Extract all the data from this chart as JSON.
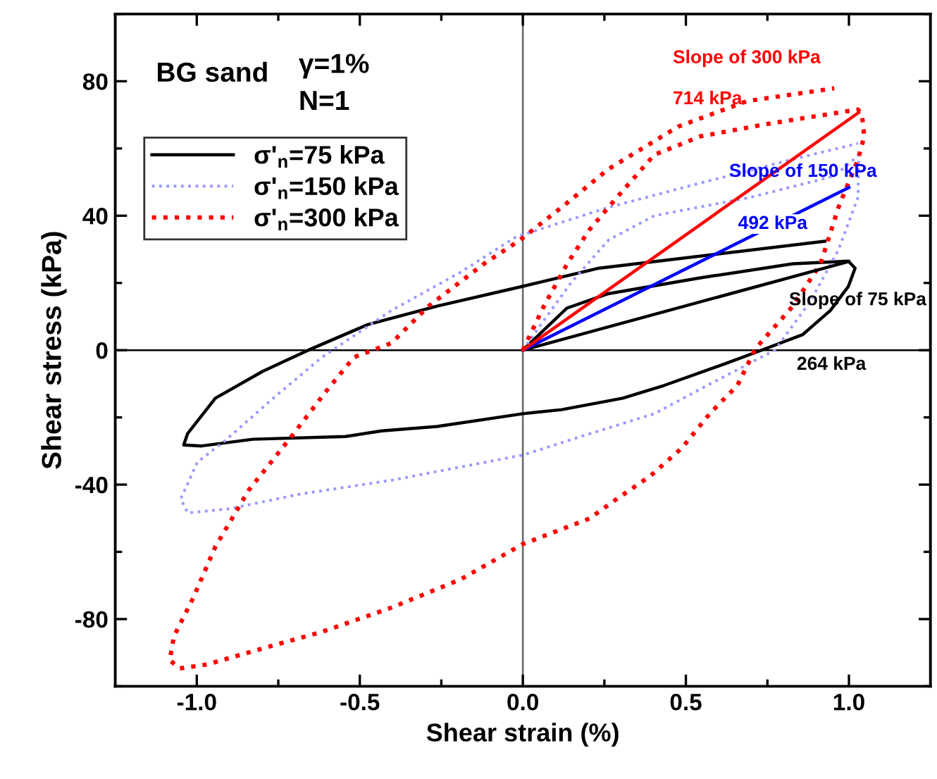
{
  "chart_data": {
    "type": "line",
    "xlabel": "Shear strain (%)",
    "ylabel": "Shear stress (kPa)",
    "xlim": [
      -1.25,
      1.25
    ],
    "ylim": [
      -100,
      100
    ],
    "xticks": [
      {
        "value": -1.0,
        "label": "-1.0"
      },
      {
        "value": -0.75,
        "label": null
      },
      {
        "value": -0.5,
        "label": "-0.5"
      },
      {
        "value": -0.25,
        "label": null
      },
      {
        "value": 0,
        "label": "0.0"
      },
      {
        "value": 0.25,
        "label": null
      },
      {
        "value": 0.5,
        "label": "0.5"
      },
      {
        "value": 0.75,
        "label": null
      },
      {
        "value": 1.0,
        "label": "1.0"
      }
    ],
    "yticks": [
      {
        "value": -100,
        "label": null
      },
      -80,
      {
        "value": -60,
        "label": null
      },
      -40,
      {
        "value": -20,
        "label": null
      },
      0,
      {
        "value": 20,
        "label": null
      },
      40,
      {
        "value": 60,
        "label": null
      },
      80,
      {
        "value": 100,
        "label": null
      }
    ],
    "grid": false,
    "legend": "top left",
    "series": [
      {
        "name": "σ'$_{n}$=75 kPa",
        "color": "#000000",
        "line_style": "solid",
        "x": [
          0,
          0.135,
          0.262,
          0.544,
          0.828,
          0.998,
          1.019,
          0.998,
          0.943,
          0.858,
          0.743,
          0.616,
          0.433,
          0.306,
          0.119,
          0,
          -0.263,
          -0.433,
          -0.544,
          -0.828,
          -0.985,
          -1.04,
          -1.028,
          -0.943,
          -0.798,
          -0.658,
          -0.476,
          -0.263,
          0,
          0.234,
          0.926
        ],
        "values": [
          0,
          12.5,
          16.8,
          21.5,
          25.7,
          26.5,
          24.4,
          18.9,
          11.8,
          4.6,
          0.4,
          -4.2,
          -10.5,
          -14.3,
          -17.7,
          -18.9,
          -22.7,
          -24,
          -25.7,
          -26.5,
          -28.5,
          -28.2,
          -24.8,
          -14.3,
          -6.3,
          0,
          7.6,
          13.1,
          19,
          24.4,
          32.4
        ]
      },
      {
        "name": "σ'$_{n}$=150 kPa",
        "color": "#9999ff",
        "line_style": "dotted",
        "x": [
          0,
          0.064,
          0.149,
          0.263,
          0.403,
          0.7,
          0.955,
          1.03,
          1.028,
          0.968,
          0.883,
          0.773,
          0.573,
          0.403,
          0.191,
          0,
          -0.403,
          -0.688,
          -0.9,
          -1.028,
          -1.049,
          -0.998,
          -0.913,
          -0.756,
          -0.616,
          -0.403,
          -0.191,
          -0.021,
          0.263,
          0.544,
          0.828,
          1.028
        ],
        "values": [
          0,
          8.8,
          20.2,
          32.8,
          40,
          45.5,
          51.8,
          58,
          45.5,
          29.9,
          14.7,
          0,
          -10.1,
          -18.9,
          -25.3,
          -31.2,
          -38.7,
          -42.9,
          -47.2,
          -48.4,
          -44.2,
          -33.3,
          -26.9,
          -13.5,
          -2.1,
          11.8,
          23.2,
          33.7,
          42.5,
          49.7,
          56.8,
          61.5
        ]
      },
      {
        "name": "σ'$_{n}$=300 kPa",
        "color": "#ff0000",
        "line_style": "dotted",
        "x": [
          0,
          0.064,
          0.136,
          0.204,
          0.289,
          0.403,
          0.544,
          0.756,
          1.028,
          1.04,
          1.047,
          1.028,
          0.968,
          0.913,
          0.828,
          0.713,
          0.658,
          0.573,
          0.488,
          0.39,
          0.289,
          0.204,
          0,
          -0.191,
          -0.403,
          -0.616,
          -0.786,
          -0.968,
          -1.053,
          -1.083,
          -1.07,
          -1.011,
          -0.943,
          -0.841,
          -0.713,
          -0.603,
          -0.518,
          -0.403,
          -0.289,
          -0.119,
          -0.008,
          0.119,
          0.263,
          0.476,
          0.688,
          0.955
        ],
        "values": [
          0,
          13,
          25.7,
          35.8,
          45.5,
          58.1,
          63.6,
          67.4,
          71.6,
          70,
          63.6,
          56.8,
          42.5,
          25.7,
          13.1,
          0.4,
          -10.5,
          -18.9,
          -29.1,
          -37.5,
          -44.2,
          -50.1,
          -57.7,
          -68.2,
          -76.6,
          -83.8,
          -88.4,
          -93.5,
          -94.7,
          -92.2,
          -85.1,
          -73.7,
          -58.5,
          -41.7,
          -26.1,
          -12.2,
          -2.1,
          2.1,
          13.1,
          25.7,
          32.8,
          42.5,
          53.9,
          66.5,
          74.1,
          77.9
        ]
      },
      {
        "color": "#000000",
        "line_style": "solid",
        "x": [
          0,
          1.0
        ],
        "values": [
          0,
          26.4
        ]
      },
      {
        "color": "#0000ff",
        "line_style": "solid",
        "x": [
          0,
          1.0
        ],
        "values": [
          0,
          48.4
        ]
      },
      {
        "color": "#ff0000",
        "line_style": "solid",
        "x": [
          0,
          1.03
        ],
        "values": [
          0,
          70.7
        ]
      }
    ],
    "ref_lines": [
      {
        "axis": "x",
        "value": 0,
        "color": "#666666"
      },
      {
        "axis": "y",
        "value": 0,
        "color": "#000000"
      }
    ],
    "annotations": [
      "BG sand",
      "γ=1%",
      "N=1",
      "Slope of 300 kPa",
      "714 kPa",
      "Slope of 150 kPa",
      "492 kPa",
      "Slope of 75 kPa",
      "264 kPa"
    ]
  }
}
